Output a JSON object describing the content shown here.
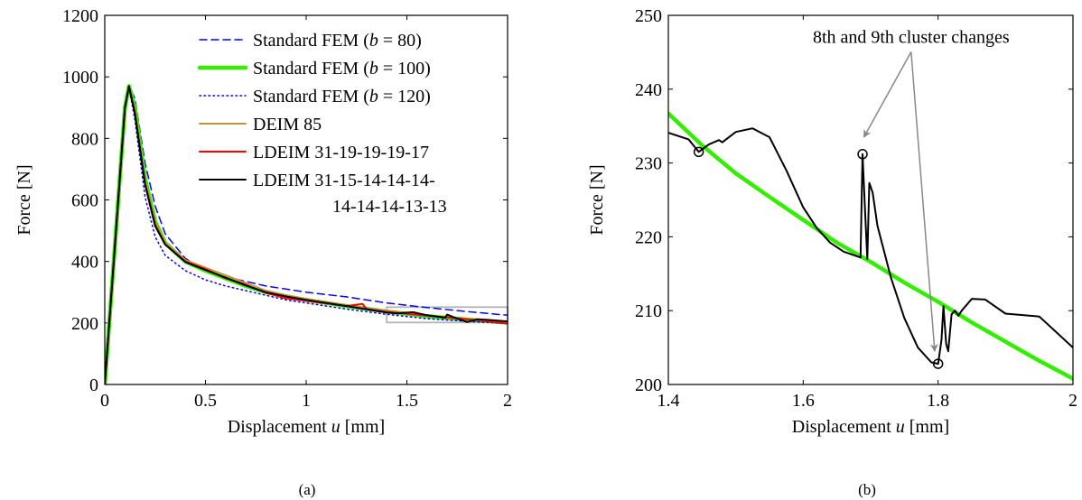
{
  "chart_data": [
    {
      "type": "line",
      "caption": "(a)",
      "xlabel": "Displacement u [mm]",
      "ylabel": "Force [N]",
      "xlim": [
        0,
        2
      ],
      "ylim": [
        0,
        1200
      ],
      "xticks": [
        0,
        0.5,
        1,
        1.5,
        2
      ],
      "xtick_labels": [
        "0",
        "0.5",
        "1",
        "1.5",
        "2"
      ],
      "yticks": [
        0,
        200,
        400,
        600,
        800,
        1000,
        1200
      ],
      "ytick_labels": [
        "0",
        "200",
        "400",
        "600",
        "800",
        "1000",
        "1200"
      ],
      "legend_position": "top-right",
      "zoom_box": {
        "x": [
          1.4,
          2
        ],
        "y": [
          200,
          250
        ]
      },
      "series": [
        {
          "name": "Standard FEM (b = 80)",
          "color": "#0000ff",
          "style": "dashed",
          "x": [
            0,
            0.05,
            0.1,
            0.12,
            0.15,
            0.2,
            0.25,
            0.3,
            0.4,
            0.5,
            0.6,
            0.7,
            0.8,
            0.9,
            1.0,
            1.2,
            1.4,
            1.6,
            1.8,
            2.0
          ],
          "y": [
            0,
            450,
            900,
            970,
            930,
            720,
            580,
            490,
            410,
            370,
            350,
            335,
            320,
            310,
            300,
            285,
            265,
            250,
            237,
            225
          ]
        },
        {
          "name": "Standard FEM (b = 100)",
          "color": "#33ee00",
          "style": "thick",
          "x": [
            0,
            0.05,
            0.1,
            0.12,
            0.15,
            0.2,
            0.25,
            0.3,
            0.4,
            0.5,
            0.6,
            0.7,
            0.8,
            0.9,
            1.0,
            1.2,
            1.4,
            1.6,
            1.8,
            2.0
          ],
          "y": [
            0,
            450,
            900,
            970,
            900,
            670,
            530,
            460,
            400,
            370,
            345,
            320,
            300,
            287,
            275,
            255,
            237,
            222,
            211,
            201
          ]
        },
        {
          "name": "Standard FEM (b = 120)",
          "color": "#0000ff",
          "style": "dotted",
          "x": [
            0,
            0.05,
            0.1,
            0.12,
            0.15,
            0.2,
            0.25,
            0.3,
            0.4,
            0.5,
            0.6,
            0.7,
            0.8,
            0.9,
            1.0,
            1.2,
            1.4,
            1.6,
            1.8,
            2.0
          ],
          "y": [
            0,
            450,
            900,
            965,
            860,
            610,
            480,
            420,
            370,
            340,
            320,
            305,
            290,
            275,
            265,
            245,
            228,
            214,
            205,
            198
          ]
        },
        {
          "name": "DEIM 85",
          "color": "#c8903c",
          "style": "solid",
          "x": [
            0,
            0.05,
            0.1,
            0.12,
            0.15,
            0.2,
            0.25,
            0.3,
            0.4,
            0.5,
            0.6,
            0.7,
            0.8,
            0.9,
            1.0,
            1.2,
            1.4,
            1.6,
            1.8,
            2.0
          ],
          "y": [
            0,
            450,
            900,
            970,
            890,
            660,
            525,
            460,
            405,
            380,
            355,
            330,
            305,
            290,
            278,
            258,
            240,
            225,
            212,
            204
          ]
        },
        {
          "name": "LDEIM 31-19-19-19-17",
          "color": "#ff0000",
          "style": "solid",
          "x": [
            0,
            0.05,
            0.1,
            0.12,
            0.15,
            0.2,
            0.25,
            0.3,
            0.4,
            0.5,
            0.6,
            0.7,
            0.72,
            0.8,
            0.9,
            1.0,
            1.2,
            1.28,
            1.3,
            1.4,
            1.6,
            1.8,
            2.0
          ],
          "y": [
            0,
            450,
            900,
            968,
            885,
            655,
            520,
            455,
            400,
            375,
            345,
            325,
            318,
            298,
            280,
            272,
            255,
            262,
            245,
            236,
            224,
            212,
            198
          ]
        },
        {
          "name": "LDEIM 31-15-14-14-14-14-14-14-13-13",
          "color": "#000000",
          "style": "solid",
          "x": [
            0,
            0.05,
            0.1,
            0.12,
            0.15,
            0.2,
            0.25,
            0.3,
            0.4,
            0.5,
            0.6,
            0.7,
            0.8,
            0.9,
            1.0,
            1.2,
            1.4,
            1.45,
            1.53,
            1.6,
            1.69,
            1.7,
            1.75,
            1.8,
            1.85,
            1.9,
            2.0
          ],
          "y": [
            0,
            450,
            900,
            970,
            880,
            650,
            515,
            455,
            398,
            372,
            347,
            322,
            300,
            286,
            275,
            255,
            234,
            231,
            235,
            225,
            217,
            227,
            214,
            203,
            212,
            210,
            205
          ]
        }
      ]
    },
    {
      "type": "line",
      "caption": "(b)",
      "xlabel": "Displacement u [mm]",
      "ylabel": "Force [N]",
      "xlim": [
        1.4,
        2
      ],
      "ylim": [
        200,
        250
      ],
      "xticks": [
        1.4,
        1.6,
        1.8,
        2
      ],
      "xtick_labels": [
        "1.4",
        "1.6",
        "1.8",
        "2"
      ],
      "yticks": [
        200,
        210,
        220,
        230,
        240,
        250
      ],
      "ytick_labels": [
        "200",
        "210",
        "220",
        "230",
        "240",
        "250"
      ],
      "annotation": {
        "text": "8th and 9th cluster changes",
        "x": 1.76,
        "y": 247,
        "targets": [
          {
            "x": 1.69,
            "y": 233.5
          },
          {
            "x": 1.795,
            "y": 204.5
          }
        ]
      },
      "markers": [
        {
          "x": 1.445,
          "y": 231.5
        },
        {
          "x": 1.688,
          "y": 231.2
        },
        {
          "x": 1.8,
          "y": 202.8
        }
      ],
      "series": [
        {
          "color": "#33ee00",
          "style": "thick",
          "x": [
            1.4,
            1.45,
            1.5,
            1.55,
            1.6,
            1.65,
            1.7,
            1.75,
            1.8,
            1.85,
            1.9,
            1.95,
            2.0
          ],
          "y": [
            236.7,
            232.4,
            228.6,
            225.4,
            222.3,
            219.2,
            216.6,
            213.8,
            211.2,
            208.4,
            205.8,
            203.2,
            200.8
          ]
        },
        {
          "color": "#000000",
          "style": "solid",
          "x": [
            1.4,
            1.43,
            1.445,
            1.46,
            1.475,
            1.48,
            1.5,
            1.525,
            1.55,
            1.575,
            1.6,
            1.62,
            1.64,
            1.66,
            1.685,
            1.688,
            1.692,
            1.695,
            1.698,
            1.703,
            1.71,
            1.73,
            1.75,
            1.77,
            1.79,
            1.8,
            1.805,
            1.808,
            1.812,
            1.815,
            1.82,
            1.825,
            1.83,
            1.835,
            1.85,
            1.87,
            1.9,
            1.95,
            2.0
          ],
          "y": [
            234.1,
            233.2,
            231.5,
            232.5,
            233.1,
            232.8,
            234.2,
            234.7,
            233.5,
            229.0,
            224.0,
            221.2,
            219.2,
            218.0,
            217.2,
            231.2,
            223.0,
            217.0,
            227.3,
            226.0,
            221.5,
            214.5,
            209.0,
            205.0,
            203.0,
            202.8,
            206.0,
            210.6,
            205.5,
            204.5,
            209.5,
            210.0,
            209.3,
            210.0,
            211.6,
            211.5,
            209.6,
            209.2,
            205.0
          ]
        }
      ]
    }
  ]
}
